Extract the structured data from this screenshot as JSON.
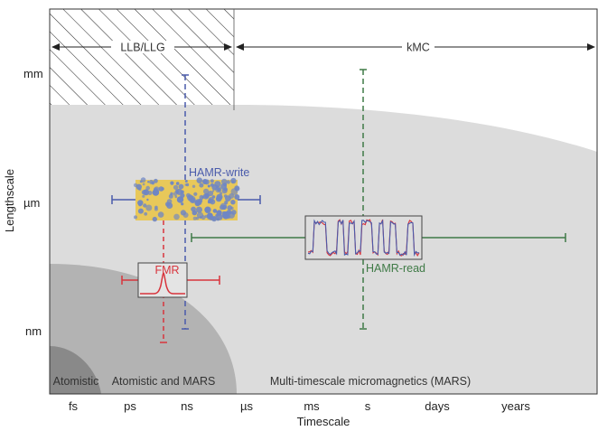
{
  "axes": {
    "x_title": "Timescale",
    "y_title": "Lengthscale",
    "x_ticks": [
      "fs",
      "ps",
      "ns",
      "µs",
      "ms",
      "s",
      "days",
      "years"
    ],
    "y_ticks": [
      "mm",
      "µm",
      "nm"
    ]
  },
  "regions": {
    "llb_llg": "LLB/LLG",
    "kmc": "kMC",
    "atomistic": "Atomistic",
    "atomistic_mars": "Atomistic and MARS",
    "mars": "Multi-timescale micromagnetics (MARS)"
  },
  "methods": {
    "hamr_write": "HAMR-write",
    "hamr_read": "HAMR-read",
    "fmr": "FMR"
  },
  "colors": {
    "hamr_write": "#4a5bab",
    "hamr_read": "#3f7a46",
    "fmr": "#d8343c",
    "grain_yellow": "#e8c85a",
    "grain_blue": "#6f86c4"
  }
}
